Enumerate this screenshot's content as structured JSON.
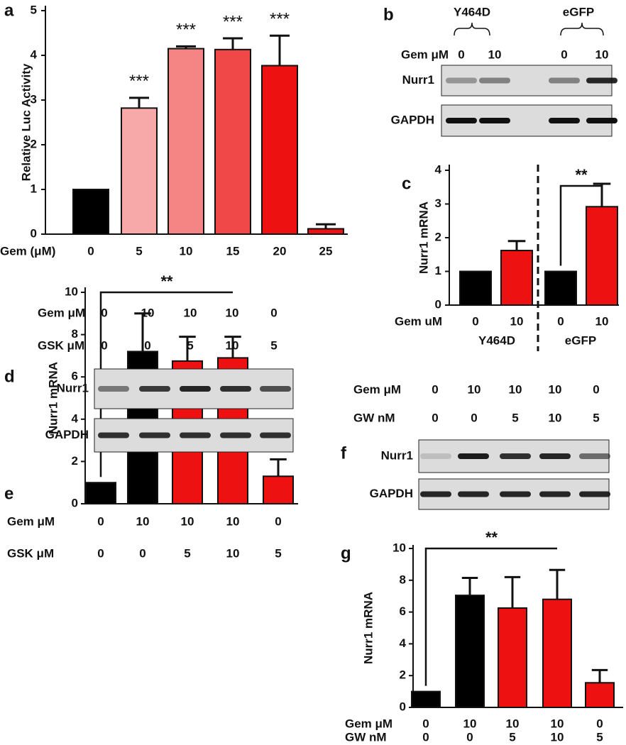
{
  "chart_data": [
    {
      "type": "bar",
      "panel": "a",
      "y_label": "Relative Luc Activity",
      "row_labels": [
        "Gem (μM)"
      ],
      "categories": [
        "0",
        "5",
        "10",
        "15",
        "20",
        "25"
      ],
      "values": [
        1,
        2.82,
        4.15,
        4.13,
        3.77,
        0.12
      ],
      "errors": [
        null,
        0.23,
        0.05,
        0.25,
        0.67,
        0.1
      ],
      "colors": [
        "#000000",
        "#f7a8a8",
        "#f58585",
        "#f04848",
        "#ee1111",
        "#ee1111"
      ],
      "annotations": [
        null,
        "***",
        "***",
        "***",
        "***",
        null
      ],
      "ylim": [
        0,
        5
      ],
      "yticks": [
        0,
        1,
        2,
        3,
        4,
        5
      ]
    },
    {
      "type": "bar",
      "panel": "c",
      "y_label": "Nurr1 mRNA",
      "row_labels": [
        "Gem uM"
      ],
      "categories": [
        "0",
        "10",
        "0",
        "10"
      ],
      "groups": [
        "Y464D",
        "eGFP"
      ],
      "values": [
        1,
        1.62,
        1,
        2.92
      ],
      "errors": [
        null,
        0.28,
        null,
        0.68
      ],
      "colors": [
        "#000000",
        "#ee1111",
        "#000000",
        "#ee1111"
      ],
      "significance": "**",
      "ylim": [
        0,
        4
      ],
      "yticks": [
        0,
        1,
        2,
        3,
        4
      ]
    },
    {
      "type": "bar",
      "panel": "e",
      "y_label": "Nurr1 mRNA",
      "row_labels": [
        "Gem μM",
        "GSK μM"
      ],
      "categories": [
        "0",
        "10",
        "10",
        "10",
        "0"
      ],
      "second_row": [
        "0",
        "0",
        "5",
        "10",
        "5"
      ],
      "values": [
        1,
        7.2,
        6.75,
        6.9,
        1.3
      ],
      "errors": [
        null,
        1.8,
        1.15,
        1.0,
        0.8
      ],
      "colors": [
        "#000000",
        "#000000",
        "#ee1111",
        "#ee1111",
        "#ee1111"
      ],
      "significance": "**",
      "ylim": [
        0,
        10
      ],
      "yticks": [
        0,
        2,
        4,
        6,
        8,
        10
      ]
    },
    {
      "type": "bar",
      "panel": "g",
      "y_label": "Nurr1 mRNA",
      "row_labels": [
        "Gem μM",
        "GW nM"
      ],
      "categories": [
        "0",
        "10",
        "10",
        "10",
        "0"
      ],
      "second_row": [
        "0",
        "0",
        "5",
        "10",
        "5"
      ],
      "values": [
        1,
        7.05,
        6.25,
        6.8,
        1.55
      ],
      "errors": [
        null,
        1.1,
        1.95,
        1.85,
        0.8
      ],
      "colors": [
        "#000000",
        "#000000",
        "#ee1111",
        "#ee1111",
        "#ee1111"
      ],
      "significance": "**",
      "ylim": [
        0,
        10
      ],
      "yticks": [
        0,
        2,
        4,
        6,
        8,
        10
      ]
    }
  ],
  "blots": [
    {
      "panel": "b",
      "groups": [
        "Y464D",
        "eGFP"
      ],
      "header_rows": [
        {
          "label": "Gem μM",
          "values": [
            "0",
            "10",
            "0",
            "10"
          ]
        }
      ],
      "rows": [
        "Nurr1",
        "GAPDH"
      ]
    },
    {
      "panel": "d",
      "header_rows": [
        {
          "label": "Gem μM",
          "values": [
            "0",
            "10",
            "10",
            "10",
            "0"
          ]
        },
        {
          "label": "GSK μM",
          "values": [
            "0",
            "0",
            "5",
            "10",
            "5"
          ]
        }
      ],
      "rows": [
        "Nurr1",
        "GAPDH"
      ]
    },
    {
      "panel": "f",
      "header_rows": [
        {
          "label": "Gem μM",
          "values": [
            "0",
            "10",
            "10",
            "10",
            "0"
          ]
        },
        {
          "label": "GW nM",
          "values": [
            "0",
            "0",
            "5",
            "10",
            "5"
          ]
        }
      ],
      "rows": [
        "Nurr1",
        "GAPDH"
      ]
    }
  ]
}
